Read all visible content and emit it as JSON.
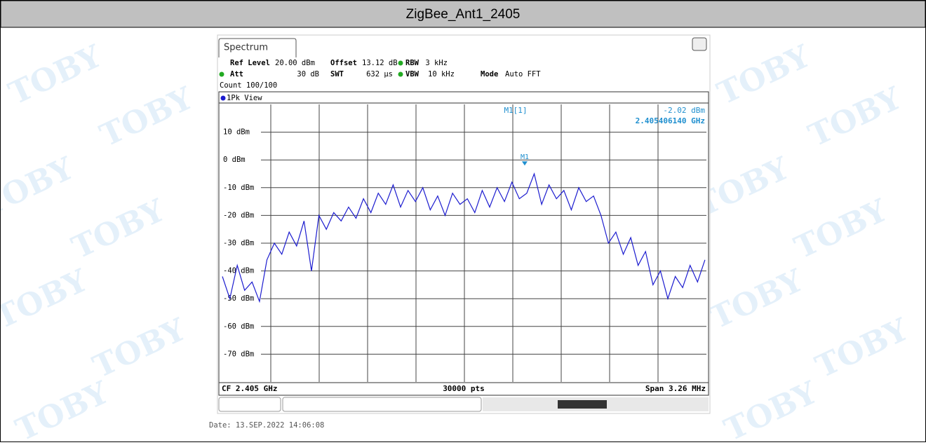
{
  "header": "ZigBee_Ant1_2405",
  "watermark": "TOBY",
  "date": "Date: 13.SEP.2022  14:06:08",
  "chart_data": {
    "type": "line",
    "tab": "Spectrum",
    "settings": {
      "ref_level": {
        "label": "Ref Level",
        "value": "20.00 dBm"
      },
      "offset": {
        "label": "Offset",
        "value": "13.12 dB"
      },
      "rbw": {
        "label": "RBW",
        "value": "3 kHz"
      },
      "att": {
        "label": "Att",
        "value": "30 dB"
      },
      "swt": {
        "label": "SWT",
        "value": "632 µs"
      },
      "vbw": {
        "label": "VBW",
        "value": "10 kHz"
      },
      "mode": {
        "label": "Mode",
        "value": "Auto FFT"
      },
      "count": "Count 100/100"
    },
    "view": "1Pk View",
    "marker": {
      "name": "M1",
      "label": "M1[1]",
      "x": 2.40540614,
      "value": -2.02,
      "value_label": "-2.02 dBm",
      "x_label": "2.405406140 GHz"
    },
    "center": "CF 2.405 GHz",
    "points": "30000 pts",
    "span": "Span 3.26 MHz",
    "xlim": [
      2.40337,
      2.40663
    ],
    "ylim": [
      -80,
      20
    ],
    "yticks": [
      {
        "value": 10,
        "label": "10 dBm"
      },
      {
        "value": 0,
        "label": "0 dBm"
      },
      {
        "value": -10,
        "label": "-10 dBm"
      },
      {
        "value": -20,
        "label": "-20 dBm"
      },
      {
        "value": -30,
        "label": "-30 dBm"
      },
      {
        "value": -40,
        "label": "-40 dBm"
      },
      {
        "value": -50,
        "label": "-50 dBm"
      },
      {
        "value": -60,
        "label": "-60 dBm"
      },
      {
        "value": -70,
        "label": "-70 dBm"
      }
    ],
    "color": "#1c1ccf",
    "x": [
      2.40337,
      2.40342,
      2.40347,
      2.40352,
      2.40357,
      2.40362,
      2.40367,
      2.40372,
      2.40377,
      2.40382,
      2.40387,
      2.40392,
      2.40397,
      2.40402,
      2.40407,
      2.40412,
      2.40417,
      2.40422,
      2.40427,
      2.40432,
      2.40437,
      2.40442,
      2.40447,
      2.40452,
      2.40457,
      2.40462,
      2.40467,
      2.40472,
      2.40477,
      2.40482,
      2.40487,
      2.40492,
      2.40497,
      2.40502,
      2.40507,
      2.40512,
      2.40517,
      2.40522,
      2.40527,
      2.40532,
      2.40537,
      2.40542,
      2.40547,
      2.40552,
      2.40557,
      2.40562,
      2.40567,
      2.40572,
      2.40577,
      2.40582,
      2.40587,
      2.40592,
      2.40597,
      2.40602,
      2.40607,
      2.40612,
      2.40617,
      2.40622,
      2.40627,
      2.40632,
      2.40637,
      2.40642,
      2.40647,
      2.40652,
      2.40657,
      2.40662
    ],
    "values": [
      -42,
      -50,
      -38,
      -47,
      -44,
      -51,
      -36,
      -30,
      -34,
      -26,
      -31,
      -22,
      -40,
      -20,
      -25,
      -19,
      -22,
      -17,
      -21,
      -14,
      -19,
      -12,
      -16,
      -9,
      -17,
      -11,
      -15,
      -10,
      -18,
      -13,
      -20,
      -12,
      -16,
      -14,
      -19,
      -11,
      -17,
      -10,
      -15,
      -8,
      -14,
      -12,
      -5,
      -16,
      -9,
      -14,
      -11,
      -18,
      -10,
      -15,
      -13,
      -20,
      -30,
      -26,
      -34,
      -28,
      -38,
      -33,
      -45,
      -40,
      -50,
      -42,
      -46,
      -38,
      -44,
      -36
    ]
  }
}
